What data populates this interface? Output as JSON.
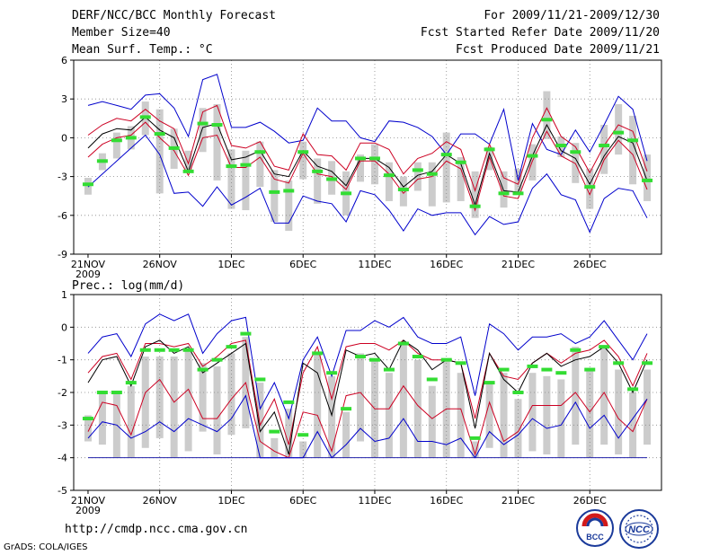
{
  "header": {
    "title": "DERF/NCC/BCC Monthly Forecast",
    "member_size": "Member Size=40",
    "variable1": "Mean Surf. Temp.: °C",
    "for_period": "For 2009/11/21-2009/12/30",
    "fcst_started": "Fcst Started Refer Date 2009/11/20",
    "fcst_produced": "Fcst Produced Date 2009/11/21"
  },
  "footer": {
    "url": "http://cmdp.ncc.cma.gov.cn",
    "grads": "GrADS: COLA/IGES",
    "logo_left_text": "BCC",
    "logo_right_text": "NCC"
  },
  "colors": {
    "outer_envelope": "#0000cc",
    "inner_envelope": "#cc0022",
    "median": "#000000",
    "observed": "#33dd33",
    "box": "#cccccc",
    "floor_line": "#2222aa"
  },
  "chart_data": [
    {
      "type": "line",
      "title": "Mean Surf. Temp.: °C",
      "xlabel": "",
      "ylabel": "",
      "ylim": [
        -9,
        6
      ],
      "yticks": [
        6,
        3,
        0,
        -3,
        -6,
        -9
      ],
      "xticks": [
        {
          "day": 1,
          "label": "21NOV",
          "sub": "2009"
        },
        {
          "day": 6,
          "label": "26NOV"
        },
        {
          "day": 11,
          "label": "1DEC"
        },
        {
          "day": 16,
          "label": "6DEC"
        },
        {
          "day": 21,
          "label": "11DEC"
        },
        {
          "day": 26,
          "label": "16DEC"
        },
        {
          "day": 31,
          "label": "21DEC"
        },
        {
          "day": 36,
          "label": "26DEC"
        }
      ],
      "grid": true,
      "x": [
        1,
        2,
        3,
        4,
        5,
        6,
        7,
        8,
        9,
        10,
        11,
        12,
        13,
        14,
        15,
        16,
        17,
        18,
        19,
        20,
        21,
        22,
        23,
        24,
        25,
        26,
        27,
        28,
        29,
        30,
        31,
        32,
        33,
        34,
        35,
        36,
        37,
        38,
        39,
        40
      ],
      "series": [
        {
          "name": "ensemble max",
          "role": "outer",
          "values": [
            2.5,
            2.8,
            2.5,
            2.2,
            3.3,
            3.4,
            2.3,
            0.1,
            4.5,
            4.9,
            0.8,
            0.8,
            1.2,
            0.5,
            -0.4,
            -0.2,
            2.3,
            1.3,
            1.3,
            0,
            -0.3,
            1.3,
            1.2,
            0.8,
            0.1,
            -1.3,
            0.3,
            0.3,
            -0.5,
            2.2,
            -3.3,
            1.1,
            -0.9,
            -1.3,
            0.6,
            -1.1,
            1,
            3.2,
            2.2,
            -1.8
          ]
        },
        {
          "name": "ensemble upper",
          "role": "inner",
          "values": [
            0.2,
            1,
            1.5,
            1.3,
            2.2,
            1.3,
            0.7,
            -2,
            2,
            2.5,
            -0.6,
            -0.8,
            -0.3,
            -2.2,
            -2.5,
            0.3,
            -1.3,
            -1.4,
            -2.5,
            -0.4,
            -0.4,
            -0.9,
            -2.8,
            -1.6,
            -1.2,
            -0.3,
            -0.9,
            -4.1,
            -0.5,
            -3.1,
            -3.6,
            0,
            2.3,
            0.1,
            -0.7,
            -2.7,
            -0.6,
            1,
            0.5,
            -2.6
          ]
        },
        {
          "name": "ensemble median",
          "role": "median",
          "values": [
            -0.8,
            0.3,
            0.7,
            0.6,
            1.6,
            0.6,
            0,
            -2.6,
            0.8,
            1.1,
            -1.7,
            -1.5,
            -1,
            -2.8,
            -3,
            -1,
            -2.2,
            -2.6,
            -3.7,
            -1.6,
            -1.6,
            -2.3,
            -3.8,
            -2.9,
            -2.6,
            -1.3,
            -2,
            -5.2,
            -1.2,
            -4.1,
            -4.2,
            -1.4,
            1,
            -1,
            -1.6,
            -3.6,
            -1.4,
            0.1,
            -0.4,
            -3.3
          ]
        },
        {
          "name": "ensemble lower",
          "role": "inner",
          "values": [
            -1.5,
            -0.5,
            0,
            0.2,
            1.2,
            0,
            -1,
            -2.9,
            0,
            0.2,
            -2.3,
            -2.3,
            -1.5,
            -3.2,
            -3.5,
            -1.2,
            -2.8,
            -3,
            -4,
            -1.8,
            -1.8,
            -2.8,
            -4.3,
            -3.2,
            -3,
            -1.8,
            -2.4,
            -5.6,
            -1.5,
            -4.5,
            -4.7,
            -1.8,
            0.5,
            -1.4,
            -2,
            -4.4,
            -1.7,
            -0.2,
            -1.3,
            -4
          ]
        },
        {
          "name": "ensemble min",
          "role": "outer",
          "values": [
            -3.8,
            -2.8,
            -1.8,
            -0.8,
            0.2,
            -1.3,
            -4.3,
            -4.2,
            -5.3,
            -3.8,
            -5.2,
            -4.6,
            -3.9,
            -6.6,
            -6.6,
            -4.5,
            -4.9,
            -5.1,
            -6.5,
            -4.1,
            -4.4,
            -5.6,
            -7.2,
            -5.5,
            -6,
            -5.8,
            -5.8,
            -7.5,
            -6.1,
            -6.7,
            -6.5,
            -3.9,
            -2.8,
            -4.4,
            -4.8,
            -7.3,
            -4.7,
            -3.9,
            -4.1,
            -6.2
          ]
        }
      ],
      "box_ranges": [
        [
          -4.4,
          -3.1
        ],
        [
          -2.5,
          -1.2
        ],
        [
          -1.6,
          0.4
        ],
        [
          -0.9,
          0.9
        ],
        [
          0.2,
          2.8
        ],
        [
          -4.3,
          2.2
        ],
        [
          -2.4,
          0.7
        ],
        [
          -2.6,
          -1
        ],
        [
          -1.1,
          2.3
        ],
        [
          -3.3,
          2.6
        ],
        [
          -5.5,
          -0.9
        ],
        [
          -5.6,
          -1
        ],
        [
          -3.8,
          -0.3
        ],
        [
          -6.5,
          -2.5
        ],
        [
          -7.2,
          -3.3
        ],
        [
          -3.2,
          -0.3
        ],
        [
          -5.1,
          -1.6
        ],
        [
          -4.4,
          -1.8
        ],
        [
          -6,
          -2.6
        ],
        [
          -3.4,
          -1.3
        ],
        [
          -3.6,
          -0.5
        ],
        [
          -4.9,
          -1.9
        ],
        [
          -5.3,
          -3
        ],
        [
          -4.1,
          -1.9
        ],
        [
          -5.3,
          -1.9
        ],
        [
          -5,
          0.4
        ],
        [
          -4.9,
          -1.5
        ],
        [
          -6.2,
          -2.6
        ],
        [
          -2.5,
          -0.7
        ],
        [
          -5.4,
          -2.6
        ],
        [
          -4.4,
          -2.4
        ],
        [
          -3.3,
          -0.5
        ],
        [
          -0.1,
          3.6
        ],
        [
          -1.5,
          0.1
        ],
        [
          -3.5,
          -0.4
        ],
        [
          -5.5,
          -2.4
        ],
        [
          -2.8,
          1
        ],
        [
          -1.3,
          2.6
        ],
        [
          -3.6,
          1.7
        ],
        [
          -4.9,
          -1.3
        ]
      ],
      "observed": [
        -3.6,
        -1.8,
        -0.2,
        0,
        1.6,
        0.3,
        -0.8,
        -2.6,
        1.1,
        1,
        -2.2,
        -2.1,
        -1.1,
        -4.2,
        -4.1,
        -1.1,
        -2.6,
        -3.2,
        -4.3,
        -1.6,
        -1.6,
        -2.9,
        -4,
        -2.5,
        -2.8,
        -1.3,
        -1.9,
        -5.3,
        -0.9,
        -4.3,
        -4.3,
        -1.4,
        1.4,
        -0.6,
        -1.1,
        -3.8,
        -0.6,
        0.4,
        -0.2,
        -3.3
      ]
    },
    {
      "type": "line",
      "title": "Prec.: log(mm/d)",
      "xlabel": "",
      "ylabel": "",
      "ylim": [
        -5,
        1
      ],
      "yticks": [
        1,
        0,
        -1,
        -2,
        -3,
        -4,
        -5
      ],
      "floor": -4,
      "xticks": [
        {
          "day": 1,
          "label": "21NOV",
          "sub": "2009"
        },
        {
          "day": 6,
          "label": "26NOV"
        },
        {
          "day": 11,
          "label": "1DEC"
        },
        {
          "day": 16,
          "label": "6DEC"
        },
        {
          "day": 21,
          "label": "11DEC"
        },
        {
          "day": 26,
          "label": "16DEC"
        },
        {
          "day": 31,
          "label": "21DEC"
        },
        {
          "day": 36,
          "label": "26DEC"
        }
      ],
      "grid": true,
      "x": [
        1,
        2,
        3,
        4,
        5,
        6,
        7,
        8,
        9,
        10,
        11,
        12,
        13,
        14,
        15,
        16,
        17,
        18,
        19,
        20,
        21,
        22,
        23,
        24,
        25,
        26,
        27,
        28,
        29,
        30,
        31,
        32,
        33,
        34,
        35,
        36,
        37,
        38,
        39,
        40
      ],
      "series": [
        {
          "name": "ensemble max",
          "role": "outer",
          "values": [
            -0.8,
            -0.3,
            -0.2,
            -0.9,
            0.1,
            0.4,
            0.2,
            0.4,
            -0.8,
            -0.2,
            0.2,
            0.3,
            -2.5,
            -1.7,
            -2.8,
            -1,
            -0.3,
            -1.5,
            -0.1,
            -0.1,
            0.2,
            0,
            0.3,
            -0.3,
            -0.5,
            -0.5,
            -0.3,
            -2.1,
            0.1,
            -0.2,
            -0.7,
            -0.3,
            -0.3,
            -0.2,
            -0.5,
            -0.3,
            0.2,
            -0.4,
            -1,
            -0.2
          ]
        },
        {
          "name": "ensemble upper",
          "role": "inner",
          "values": [
            -1.4,
            -0.9,
            -0.8,
            -1.6,
            -0.5,
            -0.5,
            -0.6,
            -0.5,
            -1.2,
            -0.9,
            -0.5,
            -0.4,
            -3,
            -2.2,
            -3.6,
            -1.4,
            -0.6,
            -2.2,
            -0.6,
            -0.5,
            -0.5,
            -0.7,
            -0.4,
            -0.8,
            -1,
            -1,
            -1.1,
            -2.8,
            -0.8,
            -1.5,
            -1.6,
            -1.1,
            -0.8,
            -1.1,
            -0.8,
            -0.7,
            -0.4,
            -0.9,
            -1.8,
            -0.8
          ]
        },
        {
          "name": "ensemble median",
          "role": "median",
          "values": [
            -1.7,
            -1,
            -0.9,
            -1.8,
            -0.6,
            -0.4,
            -0.8,
            -0.6,
            -1.4,
            -1.1,
            -0.8,
            -0.5,
            -3.2,
            -2.6,
            -3.9,
            -1.1,
            -1.4,
            -2.7,
            -0.7,
            -0.9,
            -0.8,
            -1.3,
            -0.4,
            -0.7,
            -1.3,
            -1,
            -1.1,
            -3.1,
            -0.8,
            -1.6,
            -2,
            -1.1,
            -0.8,
            -1.2,
            -1,
            -0.9,
            -0.6,
            -1.1,
            -2,
            -1
          ]
        },
        {
          "name": "ensemble lower",
          "role": "inner",
          "values": [
            -3.2,
            -2.3,
            -2.4,
            -3.3,
            -2,
            -1.6,
            -2.3,
            -1.9,
            -2.8,
            -2.8,
            -2.2,
            -1.7,
            -3.5,
            -3.8,
            -4,
            -2.6,
            -2.7,
            -3.8,
            -2.1,
            -2,
            -2.5,
            -2.5,
            -1.8,
            -2.4,
            -2.8,
            -2.5,
            -2.5,
            -3.9,
            -2.3,
            -3.5,
            -3.2,
            -2.4,
            -2.4,
            -2.4,
            -2,
            -2.6,
            -2,
            -2.8,
            -3.2,
            -2.2
          ]
        },
        {
          "name": "ensemble min",
          "role": "outer",
          "values": [
            -3.4,
            -2.9,
            -3,
            -3.4,
            -3.2,
            -2.9,
            -3.2,
            -2.8,
            -3,
            -3.2,
            -2.8,
            -2.1,
            -4,
            -4,
            -4,
            -4,
            -3.2,
            -4,
            -3.6,
            -3.1,
            -3.5,
            -3.4,
            -2.8,
            -3.5,
            -3.5,
            -3.6,
            -3.4,
            -4,
            -3.2,
            -3.6,
            -3.3,
            -2.8,
            -3.1,
            -3,
            -2.3,
            -3.1,
            -2.7,
            -3.4,
            -2.8,
            -2.2
          ]
        }
      ],
      "box_ranges": [
        [
          -3.5,
          -2.7
        ],
        [
          -3.6,
          -2
        ],
        [
          -4,
          -2
        ],
        [
          -4,
          -1.8
        ],
        [
          -3.7,
          -0.9
        ],
        [
          -3.4,
          -0.9
        ],
        [
          -4,
          -0.9
        ],
        [
          -3.8,
          -0.7
        ],
        [
          -3.2,
          -1.1
        ],
        [
          -3.9,
          -1.2
        ],
        [
          -3.3,
          -0.8
        ],
        [
          -3.1,
          -0.3
        ],
        [
          -4,
          -1.7
        ],
        [
          -4,
          -3.4
        ],
        [
          -4,
          -2.5
        ],
        [
          -4,
          -3.5
        ],
        [
          -4,
          -0.8
        ],
        [
          -4,
          -1.5
        ],
        [
          -4,
          -2.6
        ],
        [
          -3.5,
          -0.8
        ],
        [
          -4,
          -1
        ],
        [
          -4,
          -1.4
        ],
        [
          -4,
          -0.5
        ],
        [
          -4,
          -1
        ],
        [
          -4,
          -1.8
        ],
        [
          -4,
          -1
        ],
        [
          -4,
          -1.4
        ],
        [
          -4,
          -3.5
        ],
        [
          -3.7,
          -1.7
        ],
        [
          -4,
          -1.4
        ],
        [
          -4,
          -2.2
        ],
        [
          -3.8,
          -1.4
        ],
        [
          -3.9,
          -1.5
        ],
        [
          -4,
          -1.6
        ],
        [
          -3.6,
          -0.6
        ],
        [
          -4,
          -1.3
        ],
        [
          -3.6,
          -0.6
        ],
        [
          -3.9,
          -1.3
        ],
        [
          -4,
          -2
        ],
        [
          -3.6,
          -1.3
        ]
      ],
      "observed": [
        -2.8,
        -2,
        -2,
        -1.7,
        -0.7,
        -0.7,
        -0.7,
        -0.7,
        -1.3,
        -1,
        -0.6,
        -0.2,
        -1.6,
        -3.2,
        -2.3,
        -3.3,
        -0.8,
        -1.4,
        -2.5,
        -0.9,
        -1,
        -1.3,
        -0.5,
        -0.9,
        -1.6,
        -1,
        -1.1,
        -3.4,
        -1.7,
        -1.3,
        -2,
        -1.2,
        -1.3,
        -1.4,
        -0.7,
        -1.3,
        -0.6,
        -1.1,
        -1.9,
        -1.1
      ]
    }
  ]
}
